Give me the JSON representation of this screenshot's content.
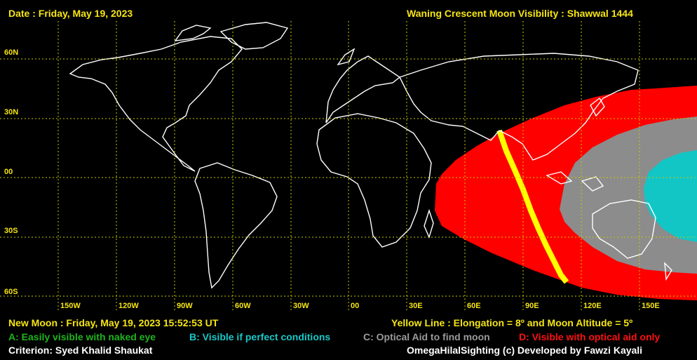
{
  "header": {
    "date": "Date : Friday, May 19, 2023",
    "title": "Waning Crescent Moon Visibility : Shawwal 1444"
  },
  "map": {
    "lat_labels": [
      "60N",
      "30N",
      "00",
      "30S",
      "60S"
    ],
    "lon_labels": [
      "150W",
      "120W",
      "90W",
      "60W",
      "30W",
      "00",
      "30E",
      "60E",
      "90E",
      "120E",
      "150E"
    ],
    "colors": {
      "grid": "#c8c800",
      "coast": "#ffffff",
      "zone_d": "#ff0000",
      "zone_c": "#8c8c8c",
      "zone_b": "#12c6c6",
      "yellow_line": "#ffff00"
    }
  },
  "footer": {
    "new_moon": "New Moon : Friday, May 19, 2023  15:52:53  UT",
    "yellow_line": "Yellow Line : Elongation = 8º  and Moon Altitude = 5º",
    "legend_a": "A: Easily visible with naked eye",
    "legend_b": "B: Visible if perfect conditions",
    "legend_c": "C: Optical Aid to find moon",
    "legend_d": "D: Visible with optical aid only",
    "criterion": "Criterion: Syed Khalid Shaukat",
    "credit": "OmegaHilalSighting  (c)  Developed by Fawzi Kayali"
  }
}
